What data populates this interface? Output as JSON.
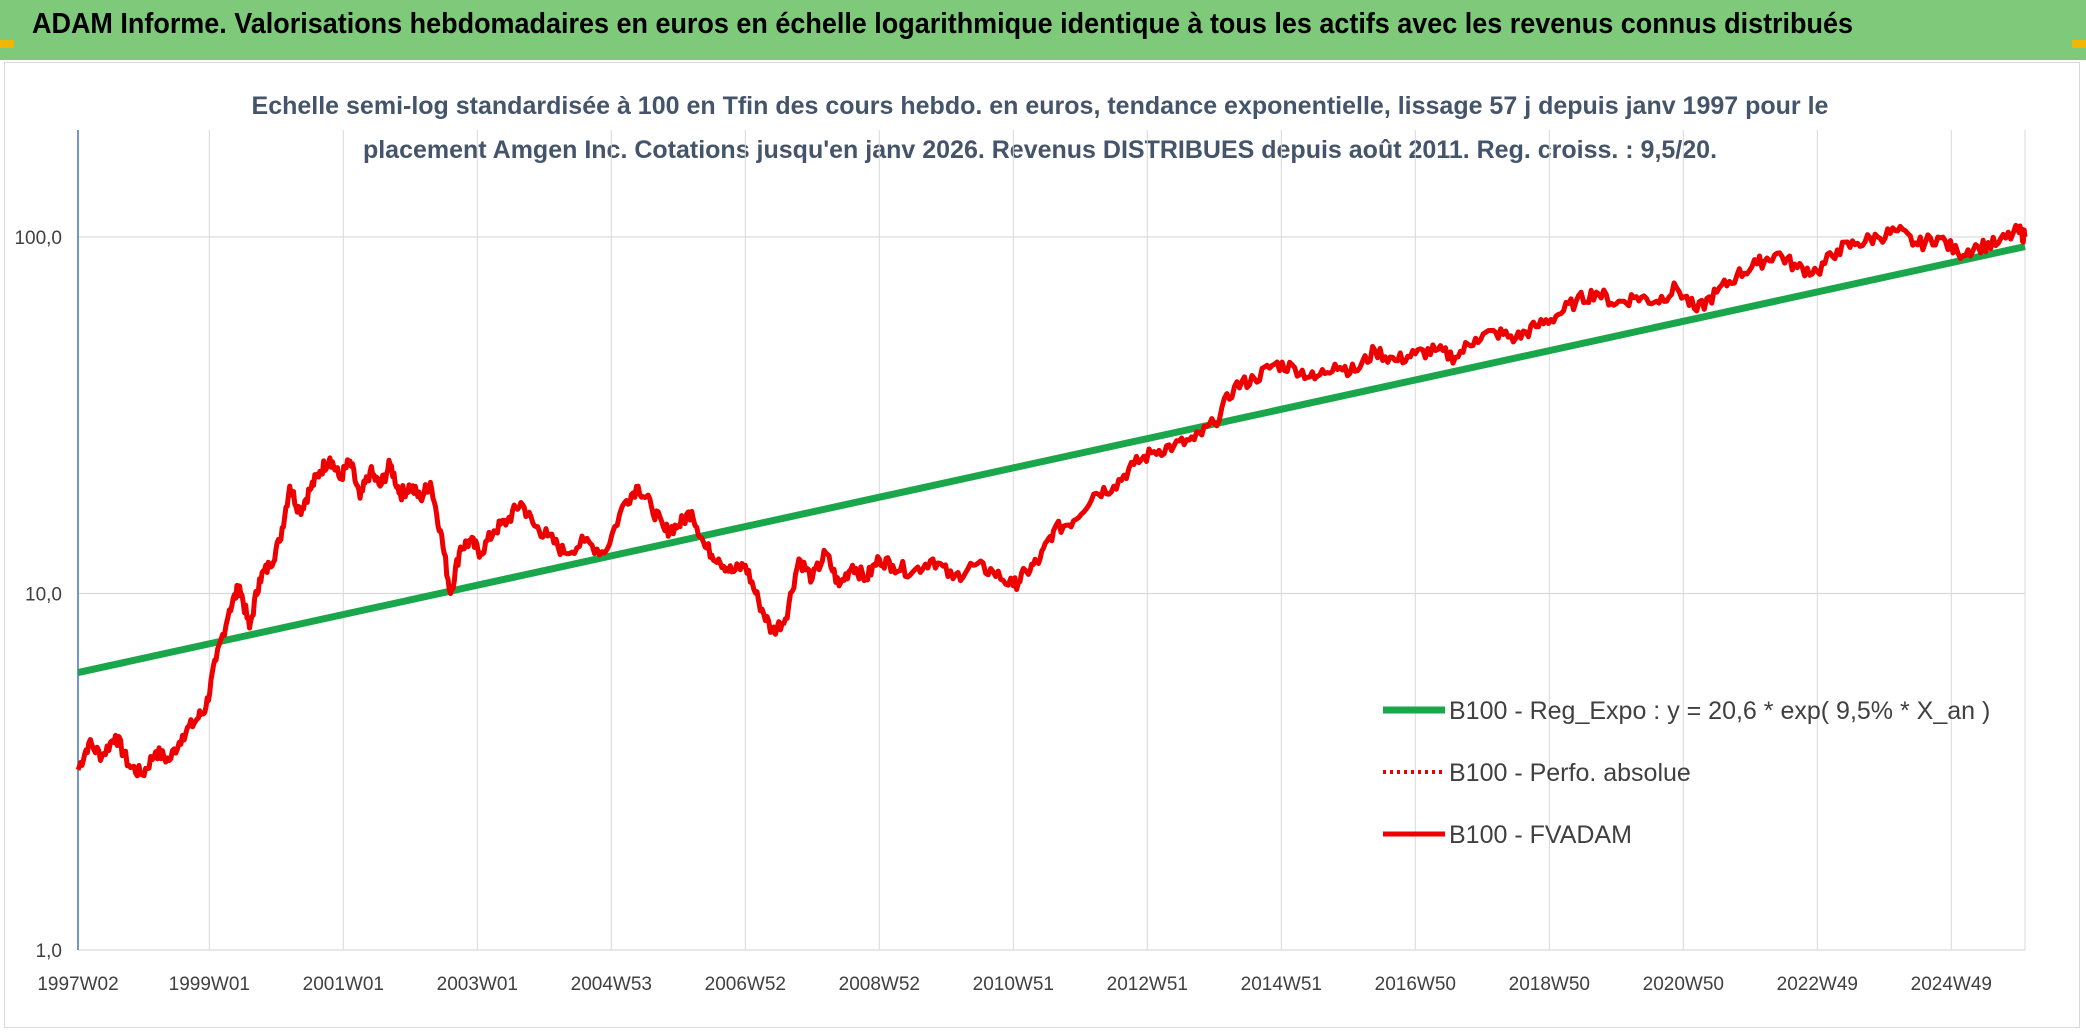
{
  "header": {
    "title": "ADAM Informe. Valorisations hebdomadaires en euros en échelle logarithmique identique à tous les actifs avec les revenus connus distribués"
  },
  "colors": {
    "header_bg": "#7fc97a",
    "trend": "#1aa64a",
    "fvadam": "#ee0000",
    "perfo": "#ee0000",
    "grid": "#d9d9d9",
    "axis": "#4472c4"
  },
  "chart_data": {
    "type": "line",
    "title_line1": "Echelle semi-log standardisée à 100 en Tfin des cours hebdo. en euros, tendance exponentielle, lissage 57 j depuis janv 1997 pour le",
    "title_line2": "placement Amgen Inc. Cotations jusqu'en janv 2026. Revenus DISTRIBUES depuis août 2011. Reg. croiss. : 9,5/20.",
    "y_scale": "log",
    "ylim": [
      1,
      100
    ],
    "y_ticks": [
      {
        "value": 1,
        "label": "1,0"
      },
      {
        "value": 10,
        "label": "10,0"
      },
      {
        "value": 100,
        "label": "100,0"
      }
    ],
    "xlim": [
      1997.04,
      2026.1
    ],
    "x_ticks": [
      {
        "value": 1997.04,
        "label": "1997W02"
      },
      {
        "value": 1999.0,
        "label": "1999W01"
      },
      {
        "value": 2001.0,
        "label": "2001W01"
      },
      {
        "value": 2003.0,
        "label": "2003W01"
      },
      {
        "value": 2005.0,
        "label": "2004W53"
      },
      {
        "value": 2007.0,
        "label": "2006W52"
      },
      {
        "value": 2009.0,
        "label": "2008W52"
      },
      {
        "value": 2011.0,
        "label": "2010W51"
      },
      {
        "value": 2013.0,
        "label": "2012W51"
      },
      {
        "value": 2015.0,
        "label": "2014W51"
      },
      {
        "value": 2017.0,
        "label": "2016W50"
      },
      {
        "value": 2019.0,
        "label": "2018W50"
      },
      {
        "value": 2021.0,
        "label": "2020W50"
      },
      {
        "value": 2023.0,
        "label": "2022W49"
      },
      {
        "value": 2025.0,
        "label": "2024W49"
      }
    ],
    "grid": true,
    "legend_position": "right",
    "series": [
      {
        "name": "B100 - Reg_Expo : y = 20,6 * exp( 9,5% *  X_an )",
        "style": "solid-thick",
        "x": [
          1997.04,
          2026.1
        ],
        "values": [
          6.0,
          94.0
        ]
      },
      {
        "name": "B100 - Perfo. absolue",
        "style": "dotted",
        "x": [],
        "values": []
      },
      {
        "name": "B100 - FVADAM",
        "style": "solid",
        "x": [
          1997.04,
          1997.2,
          1997.4,
          1997.6,
          1997.8,
          1998.0,
          1998.2,
          1998.4,
          1998.6,
          1998.8,
          1998.95,
          1999.1,
          1999.3,
          1999.45,
          1999.6,
          1999.75,
          1999.9,
          2000.05,
          2000.2,
          2000.35,
          2000.5,
          2000.65,
          2000.8,
          2000.95,
          2001.1,
          2001.25,
          2001.4,
          2001.55,
          2001.7,
          2001.85,
          2002.0,
          2002.15,
          2002.3,
          2002.45,
          2002.6,
          2002.75,
          2002.9,
          2003.05,
          2003.25,
          2003.45,
          2003.65,
          2003.85,
          2004.05,
          2004.3,
          2004.6,
          2004.9,
          2005.2,
          2005.4,
          2005.6,
          2005.8,
          2006.0,
          2006.2,
          2006.4,
          2006.6,
          2006.8,
          2007.0,
          2007.2,
          2007.4,
          2007.6,
          2007.8,
          2008.0,
          2008.2,
          2008.4,
          2008.6,
          2008.8,
          2009.0,
          2009.2,
          2009.5,
          2009.8,
          2010.1,
          2010.4,
          2010.7,
          2011.0,
          2011.2,
          2011.4,
          2011.6,
          2011.9,
          2012.2,
          2012.5,
          2012.8,
          2013.1,
          2013.4,
          2013.7,
          2014.0,
          2014.3,
          2014.6,
          2014.9,
          2015.2,
          2015.5,
          2015.8,
          2016.1,
          2016.4,
          2016.7,
          2017.0,
          2017.3,
          2017.6,
          2017.9,
          2018.2,
          2018.5,
          2018.8,
          2019.1,
          2019.4,
          2019.7,
          2020.0,
          2020.3,
          2020.6,
          2020.9,
          2021.2,
          2021.5,
          2021.8,
          2022.1,
          2022.4,
          2022.7,
          2023.0,
          2023.3,
          2023.6,
          2023.9,
          2024.2,
          2024.5,
          2024.8,
          2025.1,
          2025.4,
          2025.7,
          2026.0,
          2026.1
        ],
        "values": [
          3.2,
          3.8,
          3.5,
          4.0,
          3.3,
          3.1,
          3.6,
          3.4,
          4.0,
          4.4,
          4.8,
          6.5,
          9.0,
          10.5,
          8.0,
          11.0,
          12.0,
          14.0,
          20.0,
          17.0,
          19.5,
          22.0,
          24.0,
          21.0,
          23.5,
          18.5,
          22.0,
          20.0,
          23.0,
          19.0,
          20.0,
          18.5,
          20.5,
          15.0,
          10.0,
          13.5,
          14.0,
          13.0,
          15.0,
          16.0,
          18.0,
          15.5,
          14.5,
          13.0,
          14.0,
          13.0,
          18.0,
          20.0,
          17.5,
          15.0,
          15.5,
          17.0,
          13.5,
          12.5,
          11.5,
          12.0,
          9.5,
          7.8,
          8.5,
          12.5,
          11.0,
          13.0,
          10.5,
          12.0,
          11.0,
          12.5,
          12.0,
          11.5,
          12.5,
          11.0,
          12.0,
          11.5,
          10.5,
          11.5,
          12.5,
          15.0,
          16.0,
          19.0,
          20.0,
          23.0,
          25.0,
          26.0,
          27.0,
          30.0,
          38.0,
          40.0,
          44.0,
          43.0,
          40.0,
          44.0,
          42.0,
          48.0,
          45.0,
          47.0,
          48.0,
          46.0,
          52.0,
          54.0,
          52.0,
          56.0,
          60.0,
          66.0,
          70.0,
          65.0,
          68.0,
          66.0,
          72.0,
          62.0,
          70.0,
          78.0,
          84.0,
          90.0,
          82.0,
          80.0,
          92.0,
          96.0,
          100.0,
          104.0,
          95.0,
          100.0,
          90.0,
          94.0,
          96.0,
          104.0,
          100.0
        ]
      }
    ]
  }
}
